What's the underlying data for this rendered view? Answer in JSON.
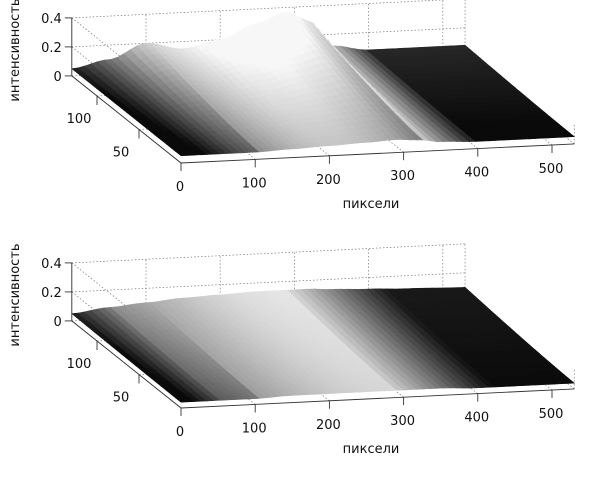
{
  "chart_data": [
    {
      "type": "surface",
      "xlabel": "пиксели",
      "ylabel": "",
      "zlabel": "интенсивность",
      "x_ticks": [
        0,
        100,
        200,
        300,
        400,
        500
      ],
      "y_ticks": [
        50,
        100
      ],
      "z_ticks": [
        0,
        0.2,
        0.4
      ],
      "xlim": [
        0,
        530
      ],
      "ylim": [
        0,
        130
      ],
      "zlim": [
        0,
        0.4
      ],
      "colormap": "gray",
      "grid": true,
      "profile_x": [
        0,
        50,
        100,
        150,
        200,
        250,
        290,
        320,
        350,
        400,
        450,
        530
      ],
      "back_edge_z": [
        0.05,
        0.1,
        0.2,
        0.15,
        0.2,
        0.3,
        0.37,
        0.3,
        0.12,
        0.08,
        0.08,
        0.08
      ],
      "front_edge_z": [
        0.05,
        0.05,
        0.05,
        0.06,
        0.07,
        0.08,
        0.09,
        0.08,
        0.06,
        0.05,
        0.05,
        0.05
      ]
    },
    {
      "type": "surface",
      "xlabel": "пиксели",
      "ylabel": "",
      "zlabel": "интенсивность",
      "x_ticks": [
        0,
        100,
        200,
        300,
        400,
        500
      ],
      "y_ticks": [
        50,
        100
      ],
      "z_ticks": [
        0,
        0.2,
        0.4
      ],
      "xlim": [
        0,
        530
      ],
      "ylim": [
        0,
        130
      ],
      "zlim": [
        0,
        0.4
      ],
      "colormap": "gray",
      "grid": true,
      "profile_x": [
        0,
        50,
        100,
        150,
        200,
        250,
        290,
        320,
        350,
        400,
        450,
        530
      ],
      "back_edge_z": [
        0.05,
        0.08,
        0.1,
        0.12,
        0.13,
        0.14,
        0.14,
        0.14,
        0.13,
        0.12,
        0.11,
        0.1
      ],
      "front_edge_z": [
        0.04,
        0.04,
        0.04,
        0.05,
        0.05,
        0.05,
        0.05,
        0.05,
        0.05,
        0.04,
        0.04,
        0.04
      ]
    }
  ]
}
